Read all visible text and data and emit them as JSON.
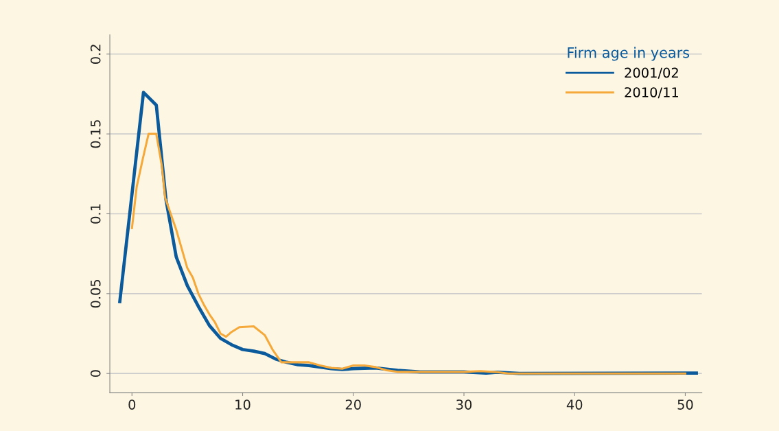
{
  "chart_data": {
    "type": "line",
    "legend_title": "Firm age in years",
    "legend": "top right",
    "grid": "y",
    "xlim": [
      -2,
      51.5
    ],
    "ylim": [
      -0.012,
      0.212
    ],
    "xticks": [
      0,
      10,
      20,
      30,
      40,
      50
    ],
    "yticks": [
      0,
      0.05,
      0.1,
      0.15,
      0.2
    ],
    "series": [
      {
        "name": "2001/02",
        "color": "#0a5a9c",
        "x": [
          -1.1,
          1.04,
          2.2,
          3.07,
          4,
          5,
          6,
          7,
          8,
          9,
          10,
          11,
          12,
          13,
          14,
          15,
          16,
          18,
          19,
          20,
          22,
          24,
          26,
          30,
          32,
          33,
          35,
          50,
          51
        ],
        "values": [
          0.045,
          0.176,
          0.168,
          0.109,
          0.073,
          0.055,
          0.042,
          0.03,
          0.022,
          0.018,
          0.015,
          0.014,
          0.0125,
          0.009,
          0.007,
          0.0055,
          0.005,
          0.003,
          0.0025,
          0.003,
          0.0035,
          0.002,
          0.001,
          0.001,
          0.0002,
          0.0008,
          0,
          0.0002,
          0.0002
        ]
      },
      {
        "name": "2010/11",
        "color": "#f5a93a",
        "x": [
          0,
          0.43,
          1,
          1.5,
          2.2,
          2.7,
          3,
          3.5,
          4,
          4.5,
          5,
          5.5,
          6,
          6.5,
          7,
          7.5,
          8,
          8.5,
          9,
          9.7,
          11,
          12,
          12.7,
          13.5,
          15,
          16,
          17,
          18,
          19,
          20,
          21,
          22,
          23,
          24,
          26,
          30,
          31.5,
          33,
          34,
          50
        ],
        "values": [
          0.091,
          0.117,
          0.135,
          0.15,
          0.15,
          0.13,
          0.11,
          0.1,
          0.09,
          0.078,
          0.066,
          0.06,
          0.05,
          0.043,
          0.037,
          0.032,
          0.025,
          0.023,
          0.026,
          0.029,
          0.0295,
          0.024,
          0.015,
          0.007,
          0.007,
          0.007,
          0.005,
          0.0035,
          0.003,
          0.005,
          0.005,
          0.004,
          0.002,
          0.001,
          0.001,
          0.001,
          0.0015,
          0.0008,
          0,
          0
        ]
      }
    ]
  }
}
